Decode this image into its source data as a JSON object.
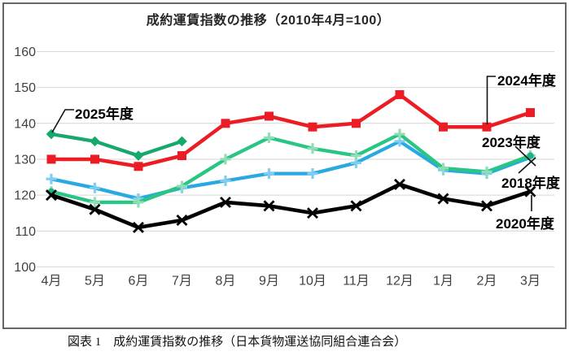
{
  "figure_caption": "図表 1　成約運賃指数の推移（日本貨物運送協同組合連合会）",
  "chart_data": {
    "type": "line",
    "title": "成約運賃指数の推移（2010年4月=100）",
    "xlabel": "",
    "ylabel": "",
    "categories": [
      "4月",
      "5月",
      "6月",
      "7月",
      "8月",
      "9月",
      "10月",
      "11月",
      "12月",
      "1月",
      "2月",
      "3月"
    ],
    "ylim": [
      100,
      160
    ],
    "ytick_step": 10,
    "grid": true,
    "legend_position": "inline-annotations",
    "axis_text_color": "#404040",
    "grid_color": "#d6d6d6",
    "series": [
      {
        "name": "2025年度",
        "color": "#17a86b",
        "marker": "diamond",
        "values": [
          137,
          135,
          131,
          135
        ]
      },
      {
        "name": "2024年度",
        "color": "#ec1c24",
        "marker": "square",
        "values": [
          130,
          130,
          128,
          131,
          140,
          142,
          139,
          140,
          148,
          139,
          139,
          143
        ]
      },
      {
        "name": "2023年度",
        "color": "#28c583",
        "marker": "plus",
        "marker_color": "#90ddb6",
        "endpoint_dot_color": "#1fb382",
        "values": [
          121,
          118,
          118,
          122.5,
          130,
          136,
          133,
          131,
          137,
          127.5,
          126.5,
          131
        ]
      },
      {
        "name": "2018年度",
        "color": "#29a9e1",
        "marker": "plus",
        "marker_color": "#7fcdf2",
        "values": [
          124.5,
          122,
          119,
          122,
          124,
          126,
          126,
          129,
          135,
          127,
          126,
          130.5
        ]
      },
      {
        "name": "2020年度",
        "color": "#000000",
        "marker": "x",
        "values": [
          120,
          116,
          111,
          113,
          118,
          117,
          115,
          117,
          123,
          119,
          117,
          121
        ]
      }
    ]
  }
}
